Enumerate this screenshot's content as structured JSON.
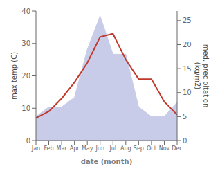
{
  "chart_data": {
    "type": "line",
    "xlabel": "date (month)",
    "ylabel": "max temp (C)",
    "y2label": "med. precipitation\n(kg/m2)",
    "categories": [
      "Jan",
      "Feb",
      "Mar",
      "Apr",
      "May",
      "Jun",
      "Jul",
      "Aug",
      "Sep",
      "Oct",
      "Nov",
      "Dec"
    ],
    "series": [
      {
        "type": "area",
        "color": "#c8cce8",
        "axis": "y2",
        "values": [
          5,
          7,
          7,
          9,
          19,
          26,
          18,
          18,
          7,
          5,
          5,
          8
        ]
      },
      {
        "type": "line",
        "color": "#c0392b",
        "values": [
          7,
          9,
          13,
          18,
          24,
          32,
          33,
          25,
          19,
          19,
          12,
          8
        ]
      }
    ],
    "ylim": [
      0,
      40
    ],
    "yticks": [
      0,
      10,
      20,
      30,
      40
    ],
    "y2lim": [
      0,
      27
    ],
    "y2ticks": [
      0,
      5,
      10,
      15,
      20,
      25
    ]
  }
}
